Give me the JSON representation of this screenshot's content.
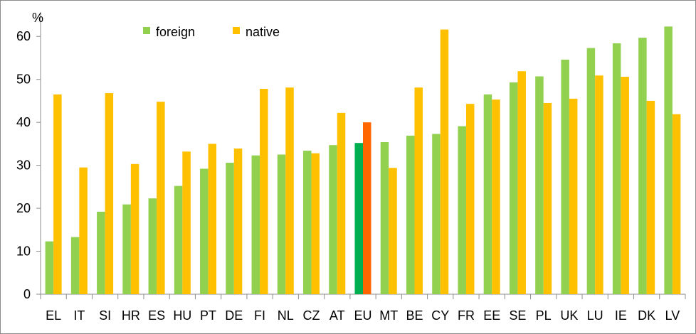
{
  "chart_data": {
    "type": "bar",
    "ylabel": "%",
    "ylim": [
      0,
      65
    ],
    "yticks": [
      0,
      10,
      20,
      30,
      40,
      50,
      60
    ],
    "grid": false,
    "legend_position": "top-left",
    "categories": [
      "EL",
      "IT",
      "SI",
      "HR",
      "ES",
      "HU",
      "PT",
      "DE",
      "FI",
      "NL",
      "CZ",
      "AT",
      "EU",
      "MT",
      "BE",
      "CY",
      "FR",
      "EE",
      "SE",
      "PL",
      "UK",
      "LU",
      "IE",
      "DK",
      "LV"
    ],
    "series": [
      {
        "name": "foreign",
        "color": "#92d050",
        "values": [
          12.3,
          13.3,
          19.2,
          20.9,
          22.3,
          25.2,
          29.2,
          30.6,
          32.3,
          32.5,
          33.4,
          34.7,
          35.2,
          35.4,
          36.9,
          37.3,
          39.1,
          46.5,
          49.3,
          50.7,
          54.6,
          57.3,
          58.4,
          59.7,
          62.3
        ]
      },
      {
        "name": "native",
        "color": "#ffc000",
        "values": [
          46.5,
          29.5,
          46.8,
          30.3,
          44.8,
          33.2,
          35.0,
          33.9,
          47.8,
          48.1,
          32.8,
          42.2,
          40.0,
          29.4,
          48.1,
          61.6,
          44.3,
          45.3,
          51.9,
          44.5,
          45.5,
          50.9,
          50.6,
          45.0,
          41.9
        ]
      }
    ],
    "highlight": {
      "category": "EU",
      "colors": [
        "#00b050",
        "#ff6600"
      ]
    }
  }
}
